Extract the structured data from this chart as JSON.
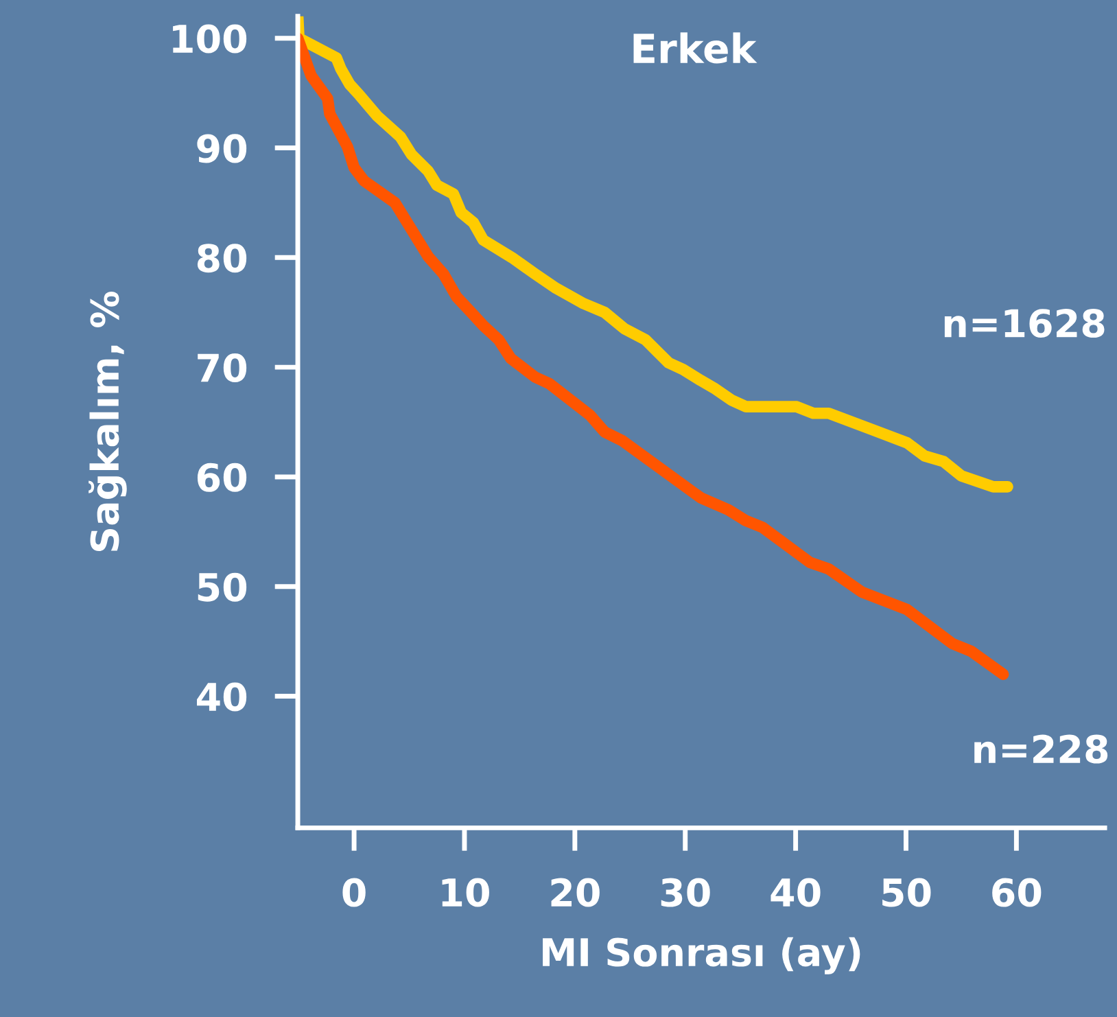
{
  "chart_data": {
    "type": "line",
    "title": "Erkek",
    "xlabel": "MI Sonrası (ay)",
    "ylabel": "Sağkalım, %",
    "xlim": [
      -5.1,
      68
    ],
    "ylim": [
      28,
      102
    ],
    "xticks": [
      0,
      10,
      20,
      30,
      40,
      50,
      60
    ],
    "yticks": [
      40,
      50,
      60,
      70,
      80,
      90,
      100
    ],
    "grid": false,
    "legend": false,
    "marker": "none",
    "line_style": "solid",
    "series": [
      {
        "name": "n=1628",
        "color": "#ffcc00",
        "x": [
          -5.1,
          -5.0,
          -1.6,
          -1.2,
          -0.4,
          0.5,
          2.1,
          4.2,
          5.2,
          6.7,
          7.5,
          9.0,
          9.7,
          10.8,
          11.7,
          14.3,
          16.4,
          18.3,
          20.8,
          22.7,
          24.5,
          26.4,
          28.5,
          29.8,
          31.4,
          32.6,
          34.2,
          35.5,
          40.1,
          41.6,
          43.0,
          50.1,
          51.7,
          53.4,
          55.0,
          57.9,
          59.2
        ],
        "values": [
          102,
          100,
          98.2,
          97.2,
          95.8,
          94.8,
          92.9,
          91,
          89.4,
          87.9,
          86.6,
          85.8,
          84.1,
          83.2,
          81.6,
          80,
          78.5,
          77.2,
          75.8,
          75,
          73.5,
          72.5,
          70.4,
          69.8,
          68.8,
          68.1,
          67,
          66.4,
          66.4,
          65.8,
          65.8,
          63.1,
          61.9,
          61.4,
          60.1,
          59.1,
          59.1
        ]
      },
      {
        "name": "n=228",
        "color": "#ff5500",
        "x": [
          -5.1,
          -3.9,
          -2.4,
          -2.2,
          -0.6,
          0,
          0.9,
          3.7,
          6.7,
          8.1,
          9.3,
          10.8,
          11.7,
          13.1,
          14.2,
          16.4,
          17.7,
          21.4,
          22.7,
          24.3,
          31.4,
          33.9,
          35.5,
          37.0,
          41.3,
          43.0,
          46.0,
          50.1,
          54.2,
          55.9,
          58.8
        ],
        "values": [
          100,
          96.6,
          94.5,
          93.1,
          90.1,
          88.2,
          87,
          85,
          80.1,
          78.5,
          76.4,
          74.8,
          73.8,
          72.5,
          70.8,
          69.1,
          68.5,
          65.6,
          64.1,
          63.3,
          58.1,
          57,
          56,
          55.4,
          52.2,
          51.6,
          49.5,
          47.9,
          44.8,
          44.1,
          42
        ]
      }
    ]
  }
}
